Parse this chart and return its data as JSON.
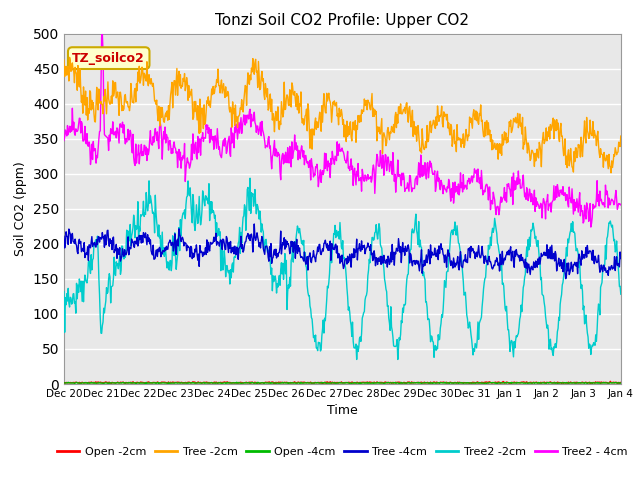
{
  "title": "Tonzi Soil CO2 Profile: Upper CO2",
  "xlabel": "Time",
  "ylabel": "Soil CO2 (ppm)",
  "ylim": [
    0,
    500
  ],
  "yticks": [
    0,
    50,
    100,
    150,
    200,
    250,
    300,
    350,
    400,
    450,
    500
  ],
  "xtick_labels": [
    "Dec 20",
    "Dec 21",
    "Dec 22",
    "Dec 23",
    "Dec 24",
    "Dec 25",
    "Dec 26",
    "Dec 27",
    "Dec 28",
    "Dec 29",
    "Dec 30",
    "Dec 31",
    "Jan 1",
    "Jan 2",
    "Jan 3",
    "Jan 4"
  ],
  "legend_labels": [
    "Open -2cm",
    "Tree -2cm",
    "Open -4cm",
    "Tree -4cm",
    "Tree2 -2cm",
    "Tree2 - 4cm"
  ],
  "legend_colors": [
    "#ff0000",
    "#ffa500",
    "#00bb00",
    "#0000cc",
    "#00cccc",
    "#ff00ff"
  ],
  "annotation_text": "TZ_soilco2",
  "annotation_color": "#cc0000",
  "annotation_bg": "#ffffcc",
  "annotation_border": "#ccaa00",
  "plot_bg_color": "#e8e8e8",
  "grid_color": "#ffffff",
  "n_points": 800,
  "end_day": 15
}
